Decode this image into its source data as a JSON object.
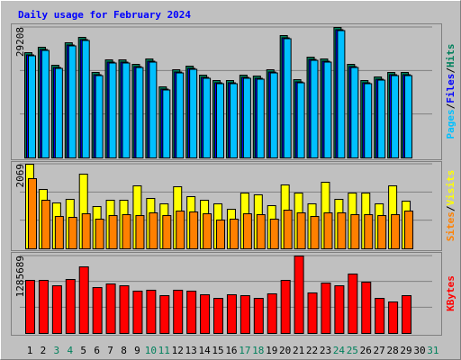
{
  "title": "Daily usage for February 2024",
  "legend_separator": "/",
  "chart_data": [
    {
      "type": "bar",
      "ylim": [
        0,
        29208
      ],
      "yticks": [
        29208
      ],
      "series": [
        {
          "name": "Hits",
          "color": "#00805c",
          "values": [
            23568,
            24776,
            20748,
            25783,
            26992,
            19136,
            21956,
            21956,
            20949,
            22158,
            15913,
            19740,
            20546,
            18532,
            17323,
            17323,
            18532,
            18330,
            19740,
            27395,
            17525,
            22561,
            22158,
            29208,
            20949,
            17323,
            18129,
            19136,
            19136,
            null,
            null
          ]
        },
        {
          "name": "Files",
          "color": "#0000ff",
          "values": [
            23060,
            24270,
            20240,
            25280,
            26490,
            18630,
            21450,
            21450,
            20440,
            21650,
            15410,
            19230,
            20040,
            18030,
            16820,
            16820,
            18030,
            17830,
            19230,
            26890,
            17020,
            22050,
            21650,
            28700,
            20440,
            16820,
            17620,
            18630,
            18630,
            null,
            null
          ]
        },
        {
          "name": "Pages",
          "color": "#00c0ff",
          "values": [
            22860,
            24070,
            20040,
            25080,
            26290,
            18430,
            21250,
            21250,
            20240,
            21450,
            15210,
            19030,
            19840,
            17830,
            16620,
            16620,
            17830,
            17630,
            19030,
            26690,
            16820,
            21850,
            21450,
            28500,
            20240,
            16620,
            17420,
            18430,
            18430,
            null,
            null
          ]
        }
      ]
    },
    {
      "type": "bar",
      "ylim": [
        0,
        2069
      ],
      "yticks": [
        2069
      ],
      "series": [
        {
          "name": "Visits",
          "color": "#ffff00",
          "values": [
            2069,
            1453,
            1123,
            1211,
            1827,
            1035,
            1189,
            1189,
            1541,
            1233,
            1101,
            1519,
            1277,
            1189,
            1101,
            968,
            1365,
            1321,
            1057,
            1563,
            1365,
            1101,
            1629,
            1211,
            1365,
            1365,
            1101,
            1541,
            1167,
            null,
            null
          ]
        },
        {
          "name": "Sites",
          "color": "#ff8000",
          "values": [
            1717,
            1189,
            792,
            770,
            858,
            726,
            814,
            836,
            814,
            880,
            814,
            924,
            902,
            858,
            704,
            726,
            858,
            836,
            726,
            946,
            880,
            792,
            880,
            880,
            836,
            836,
            814,
            836,
            924,
            null,
            null
          ]
        }
      ]
    },
    {
      "type": "bar",
      "ylim": [
        0,
        1285689
      ],
      "yticks": [
        1285689
      ],
      "categories": [
        "1",
        "2",
        "3",
        "4",
        "5",
        "6",
        "7",
        "8",
        "9",
        "10",
        "11",
        "12",
        "13",
        "14",
        "15",
        "16",
        "17",
        "18",
        "19",
        "20",
        "21",
        "22",
        "23",
        "24",
        "25",
        "26",
        "27",
        "28",
        "29",
        "30",
        "31"
      ],
      "label_colors": [
        "#000000",
        "#000000",
        "#00805c",
        "#00805c",
        "#000000",
        "#000000",
        "#000000",
        "#000000",
        "#000000",
        "#00805c",
        "#00805c",
        "#000000",
        "#000000",
        "#000000",
        "#000000",
        "#000000",
        "#00805c",
        "#00805c",
        "#000000",
        "#000000",
        "#000000",
        "#000000",
        "#000000",
        "#00805c",
        "#00805c",
        "#000000",
        "#000000",
        "#000000",
        "#000000",
        "#000000",
        "#00805c"
      ],
      "series": [
        {
          "name": "KBytes",
          "color": "#ff0000",
          "values": [
            882000,
            882000,
            792000,
            897000,
            1106000,
            762000,
            822000,
            792000,
            703000,
            718000,
            628000,
            718000,
            703000,
            643000,
            583000,
            643000,
            628000,
            583000,
            658000,
            882000,
            1285689,
            673000,
            837000,
            792000,
            987000,
            852000,
            583000,
            523000,
            628000,
            null,
            null
          ]
        }
      ]
    }
  ]
}
